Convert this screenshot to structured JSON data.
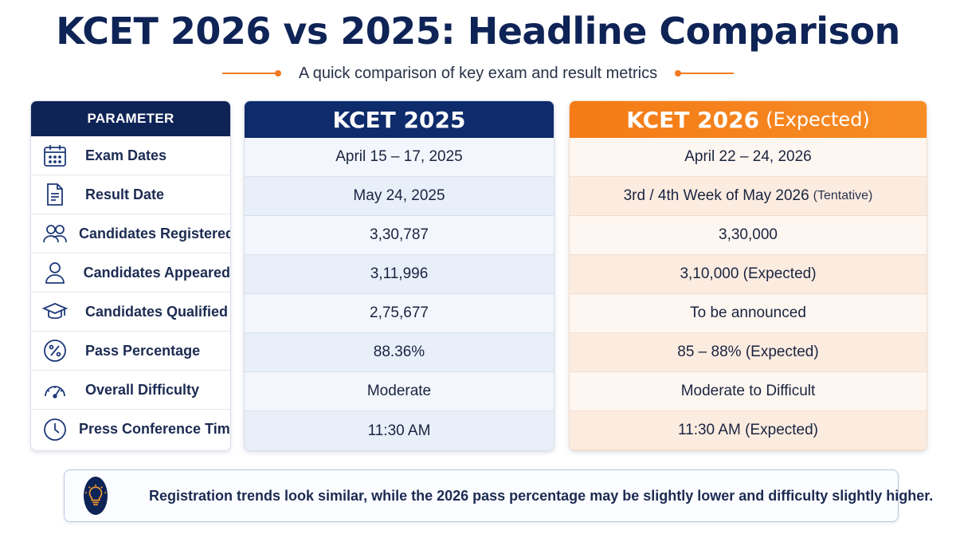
{
  "title": "KCET 2026 vs 2025: Headline Comparison",
  "subtitle": "A quick comparison of key exam and result metrics",
  "colors": {
    "navy": "#0e2356",
    "accent_orange": "#f47b16",
    "col2025_bg": "#eef3fb",
    "col2026_bg": "#fdf2ea"
  },
  "table": {
    "parameter_header": "PARAMETER",
    "col_2025_header": "KCET 2025",
    "col_2026_header": "KCET 2026",
    "col_2026_header_suffix": "(Expected)",
    "rows": [
      {
        "icon": "calendar-icon",
        "label": "Exam Dates",
        "v2025": "April 15 – 17, 2025",
        "v2026": "April 22 – 24, 2026",
        "v2026_note": ""
      },
      {
        "icon": "document-icon",
        "label": "Result Date",
        "v2025": "May 24, 2025",
        "v2026": "3rd / 4th Week of May 2026",
        "v2026_note": "(Tentative)"
      },
      {
        "icon": "group-icon",
        "label": "Candidates Registered",
        "v2025": "3,30,787",
        "v2026": "3,30,000",
        "v2026_note": ""
      },
      {
        "icon": "person-icon",
        "label": "Candidates Appeared",
        "v2025": "3,11,996",
        "v2026": "3,10,000 (Expected)",
        "v2026_note": ""
      },
      {
        "icon": "graduation-cap-icon",
        "label": "Candidates Qualified",
        "v2025": "2,75,677",
        "v2026": "To be announced",
        "v2026_note": ""
      },
      {
        "icon": "percent-icon",
        "label": "Pass Percentage",
        "v2025": "88.36%",
        "v2026": "85 – 88% (Expected)",
        "v2026_note": ""
      },
      {
        "icon": "gauge-icon",
        "label": "Overall Difficulty",
        "v2025": "Moderate",
        "v2026": "Moderate to Difficult",
        "v2026_note": ""
      },
      {
        "icon": "clock-icon",
        "label": "Press Conference Time",
        "v2025": "11:30 AM",
        "v2026": "11:30 AM (Expected)",
        "v2026_note": ""
      }
    ]
  },
  "note": {
    "icon": "lightbulb-icon",
    "text": "Registration trends look similar, while the 2026 pass percentage may be slightly lower and difficulty slightly higher."
  }
}
